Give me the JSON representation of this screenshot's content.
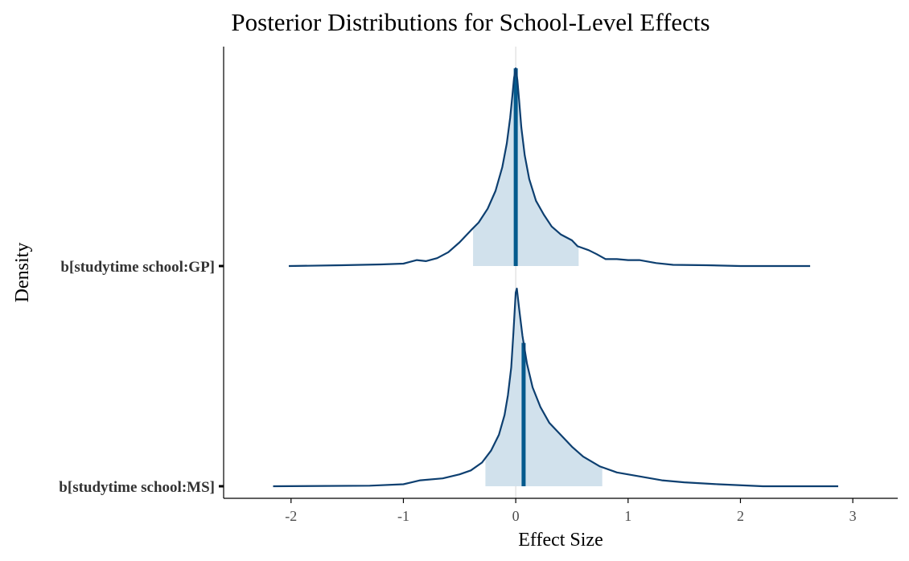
{
  "chart_data": {
    "type": "area",
    "title": "Posterior Distributions for School-Level Effects",
    "xlabel": "Effect Size",
    "ylabel": "Density",
    "xlim": [
      -2.6,
      3.4
    ],
    "x_ticks": [
      -2,
      -1,
      0,
      1,
      2,
      3
    ],
    "x_tick_labels": [
      "-2",
      "-1",
      "0",
      "1",
      "2",
      "3"
    ],
    "reference_line_x": 0,
    "grid": false,
    "legend": "none",
    "colors": {
      "outline": "#0d3f70",
      "fill": "#d1e1ec",
      "point_estimate": "#045a8d",
      "reference_line": "#e0e0e0",
      "axis": "#000000"
    },
    "series": [
      {
        "name": "b[studytime school:GP]",
        "range": [
          -2.02,
          2.62
        ],
        "interval": [
          -0.38,
          0.56
        ],
        "point_estimate": 0.0,
        "density": [
          [
            -2.02,
            0.0
          ],
          [
            -1.55,
            0.004
          ],
          [
            -1.2,
            0.008
          ],
          [
            -1.0,
            0.012
          ],
          [
            -0.88,
            0.03
          ],
          [
            -0.8,
            0.025
          ],
          [
            -0.7,
            0.04
          ],
          [
            -0.6,
            0.07
          ],
          [
            -0.5,
            0.12
          ],
          [
            -0.4,
            0.18
          ],
          [
            -0.33,
            0.22
          ],
          [
            -0.25,
            0.29
          ],
          [
            -0.18,
            0.38
          ],
          [
            -0.12,
            0.5
          ],
          [
            -0.08,
            0.62
          ],
          [
            -0.05,
            0.75
          ],
          [
            -0.03,
            0.86
          ],
          [
            -0.015,
            0.95
          ],
          [
            0.0,
            1.0
          ],
          [
            0.015,
            0.94
          ],
          [
            0.03,
            0.84
          ],
          [
            0.05,
            0.7
          ],
          [
            0.08,
            0.56
          ],
          [
            0.12,
            0.44
          ],
          [
            0.18,
            0.33
          ],
          [
            0.25,
            0.26
          ],
          [
            0.32,
            0.2
          ],
          [
            0.4,
            0.16
          ],
          [
            0.5,
            0.13
          ],
          [
            0.55,
            0.1
          ],
          [
            0.65,
            0.08
          ],
          [
            0.72,
            0.06
          ],
          [
            0.8,
            0.035
          ],
          [
            0.9,
            0.035
          ],
          [
            1.0,
            0.03
          ],
          [
            1.1,
            0.03
          ],
          [
            1.25,
            0.015
          ],
          [
            1.4,
            0.006
          ],
          [
            1.7,
            0.004
          ],
          [
            2.0,
            0.0
          ],
          [
            2.62,
            0.0
          ]
        ]
      },
      {
        "name": "b[studytime school:MS]",
        "range": [
          -2.16,
          2.87
        ],
        "interval": [
          -0.27,
          0.77
        ],
        "point_estimate": 0.07,
        "density": [
          [
            -2.16,
            0.0
          ],
          [
            -1.3,
            0.003
          ],
          [
            -1.0,
            0.01
          ],
          [
            -0.85,
            0.03
          ],
          [
            -0.65,
            0.04
          ],
          [
            -0.5,
            0.06
          ],
          [
            -0.4,
            0.08
          ],
          [
            -0.3,
            0.12
          ],
          [
            -0.22,
            0.18
          ],
          [
            -0.15,
            0.26
          ],
          [
            -0.1,
            0.36
          ],
          [
            -0.07,
            0.46
          ],
          [
            -0.04,
            0.6
          ],
          [
            -0.02,
            0.78
          ],
          [
            -0.01,
            0.88
          ],
          [
            0.0,
            0.98
          ],
          [
            0.01,
            1.0
          ],
          [
            0.03,
            0.9
          ],
          [
            0.06,
            0.76
          ],
          [
            0.1,
            0.62
          ],
          [
            0.15,
            0.5
          ],
          [
            0.22,
            0.4
          ],
          [
            0.3,
            0.32
          ],
          [
            0.4,
            0.26
          ],
          [
            0.5,
            0.2
          ],
          [
            0.6,
            0.15
          ],
          [
            0.75,
            0.1
          ],
          [
            0.9,
            0.07
          ],
          [
            1.1,
            0.05
          ],
          [
            1.3,
            0.03
          ],
          [
            1.5,
            0.02
          ],
          [
            1.8,
            0.01
          ],
          [
            2.2,
            0.0
          ],
          [
            2.87,
            0.0
          ]
        ]
      }
    ]
  }
}
